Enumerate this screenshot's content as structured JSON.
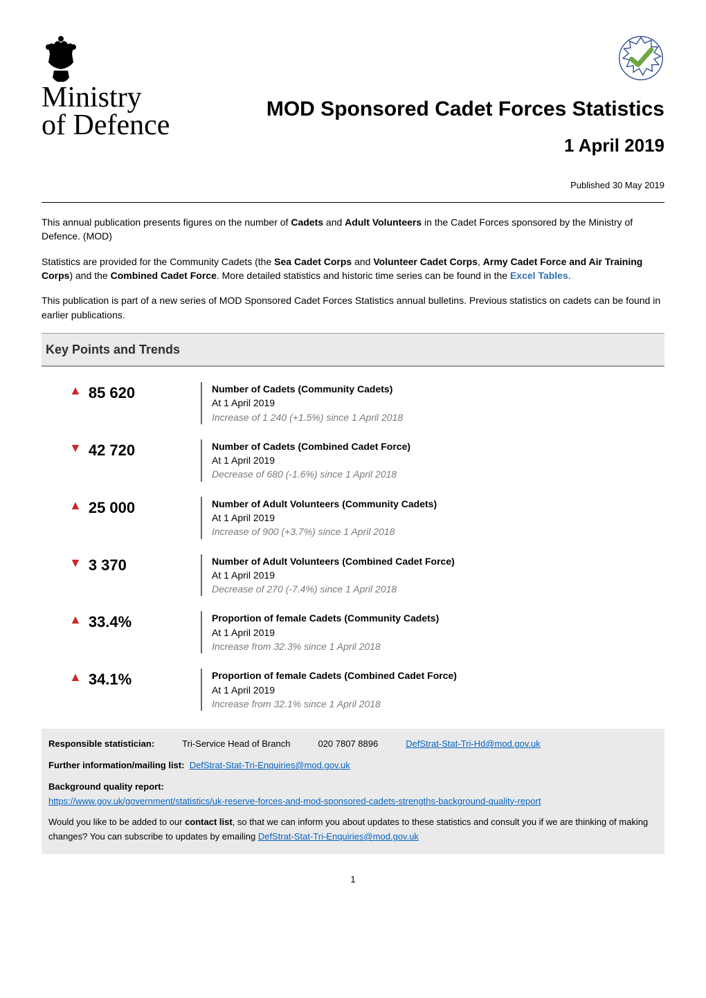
{
  "header": {
    "ministry_line1": "Ministry",
    "ministry_line2": "of Defence",
    "title": "MOD Sponsored Cadet Forces Statistics",
    "subtitle": "1 April 2019",
    "published": "Published 30 May 2019"
  },
  "badges": {
    "crest_fill": "#000000",
    "national_stats_colors": {
      "ring": "#2a4b8d",
      "tick": "#6fa843",
      "text": "#2a4b8d"
    }
  },
  "intro": {
    "p1_pre": "This annual publication presents figures on the number of ",
    "p1_b1": "Cadets",
    "p1_mid": " and ",
    "p1_b2": "Adult Volunteers",
    "p1_post": " in the Cadet Forces sponsored by the Ministry of Defence. (MOD)",
    "p2_pre": "Statistics are provided for the Community Cadets (the ",
    "p2_b1": "Sea Cadet Corps",
    "p2_mid1": " and ",
    "p2_b2": "Volunteer Cadet Corps",
    "p2_mid2": ", ",
    "p2_b3": "Army Cadet Force and Air Training Corps",
    "p2_mid3": ") and the ",
    "p2_b4": "Combined Cadet Force",
    "p2_post1": ". More detailed statistics and historic time series can be found in the ",
    "p2_link": "Excel Tables",
    "p2_post2": ".",
    "p3": "This publication is part of a new series of MOD Sponsored Cadet Forces Statistics annual bulletins. Previous statistics on cadets can be found in earlier publications."
  },
  "section_heading": "Key Points and Trends",
  "kp_colors": {
    "up": "#c82a2a",
    "down": "#c82a2a",
    "value": "#000000",
    "delta_text": "#7a7a7a",
    "rule": "#666666"
  },
  "key_points": [
    {
      "direction": "up",
      "value": "85 620",
      "title": "Number of Cadets (Community Cadets)",
      "asof": "At 1 April 2019",
      "delta": "Increase of 1 240 (+1.5%) since 1 April 2018"
    },
    {
      "direction": "down",
      "value": "42 720",
      "title": "Number of Cadets (Combined Cadet Force)",
      "asof": "At 1 April 2019",
      "delta": "Decrease of 680 (-1.6%) since 1 April 2018"
    },
    {
      "direction": "up",
      "value": "25 000",
      "title": "Number of Adult Volunteers (Community Cadets)",
      "asof": "At 1 April 2019",
      "delta": "Increase of 900 (+3.7%) since 1 April 2018"
    },
    {
      "direction": "down",
      "value": "3 370",
      "title": "Number of Adult Volunteers (Combined Cadet Force)",
      "asof": "At 1 April 2019",
      "delta": "Decrease of 270 (-7.4%) since 1 April 2018"
    },
    {
      "direction": "up",
      "value": "33.4%",
      "title": "Proportion of female Cadets (Community Cadets)",
      "asof": "At 1 April 2019",
      "delta": "Increase from 32.3% since 1 April 2018"
    },
    {
      "direction": "up",
      "value": "34.1%",
      "title": "Proportion of female Cadets (Combined Cadet Force)",
      "asof": "At 1 April 2019",
      "delta": "Increase from 32.1% since 1 April 2018"
    }
  ],
  "footer": {
    "resp_label": "Responsible statistician:",
    "resp_name": "Tri-Service Head of Branch",
    "resp_phone": "020 7807 8896",
    "resp_email": "DefStrat-Stat-Tri-Hd@mod.gov.uk",
    "further_label": "Further information/mailing list:",
    "further_email": "DefStrat-Stat-Tri-Enquiries@mod.gov.uk",
    "bqr_label": "Background quality report:",
    "bqr_url": "https://www.gov.uk/government/statistics/uk-reserve-forces-and-mod-sponsored-cadets-strengths-background-quality-report",
    "contact_pre": "Would you like to be added to our ",
    "contact_b": "contact list",
    "contact_mid": ", so that we can inform you about updates to these statistics and consult you if we are thinking of making changes? You can subscribe to updates by emailing ",
    "contact_email": "DefStrat-Stat-Tri-Enquiries@mod.gov.uk"
  },
  "page_number": "1"
}
